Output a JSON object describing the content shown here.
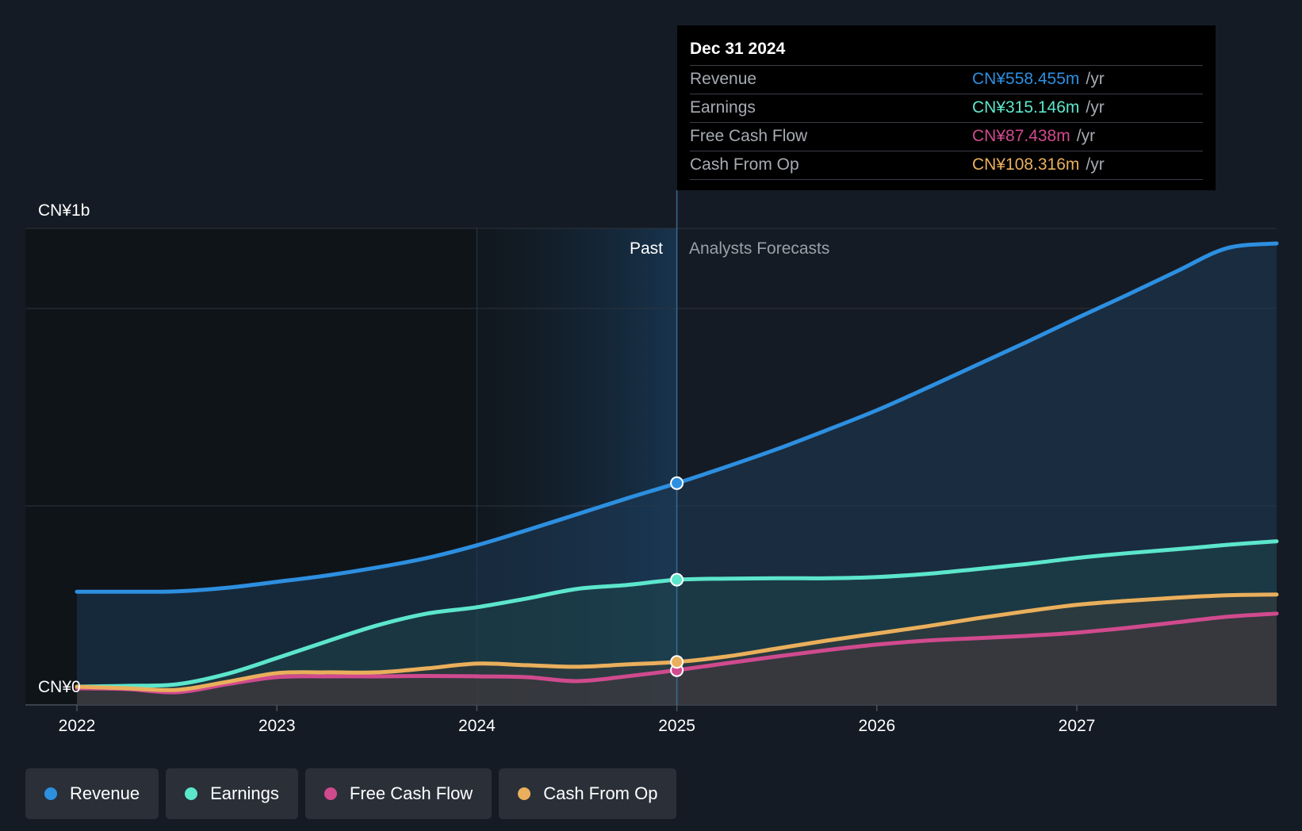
{
  "chart_data": {
    "type": "area",
    "ylabel_top": "CN¥1b",
    "ylabel_bottom": "CN¥0",
    "ylim": [
      0,
      1200
    ],
    "x_ticks": [
      "2022",
      "2023",
      "2024",
      "2025",
      "2026",
      "2027"
    ],
    "past_label": "Past",
    "forecast_label": "Analysts Forecasts",
    "series": [
      {
        "name": "Revenue",
        "color": "#2d8fe0",
        "points": [
          [
            2022.0,
            285
          ],
          [
            2022.25,
            285
          ],
          [
            2022.5,
            286
          ],
          [
            2022.75,
            295
          ],
          [
            2023.0,
            310
          ],
          [
            2023.25,
            326
          ],
          [
            2023.5,
            346
          ],
          [
            2023.75,
            370
          ],
          [
            2024.0,
            402
          ],
          [
            2024.25,
            440
          ],
          [
            2024.5,
            480
          ],
          [
            2024.75,
            520
          ],
          [
            2025.0,
            558.455
          ],
          [
            2025.25,
            600
          ],
          [
            2025.5,
            644
          ],
          [
            2025.75,
            692
          ],
          [
            2026.0,
            742
          ],
          [
            2026.25,
            798
          ],
          [
            2026.5,
            856
          ],
          [
            2026.75,
            914
          ],
          [
            2027.0,
            974
          ],
          [
            2027.25,
            1032
          ],
          [
            2027.5,
            1092
          ],
          [
            2027.75,
            1150
          ],
          [
            2028.0,
            1162
          ]
        ]
      },
      {
        "name": "Earnings",
        "color": "#5ce6cc",
        "points": [
          [
            2022.0,
            46
          ],
          [
            2022.25,
            48
          ],
          [
            2022.5,
            52
          ],
          [
            2022.75,
            78
          ],
          [
            2023.0,
            118
          ],
          [
            2023.25,
            160
          ],
          [
            2023.5,
            200
          ],
          [
            2023.75,
            230
          ],
          [
            2024.0,
            246
          ],
          [
            2024.25,
            268
          ],
          [
            2024.5,
            292
          ],
          [
            2024.75,
            302
          ],
          [
            2025.0,
            315.146
          ],
          [
            2025.25,
            318
          ],
          [
            2025.5,
            319
          ],
          [
            2025.75,
            319
          ],
          [
            2026.0,
            322
          ],
          [
            2026.25,
            330
          ],
          [
            2026.5,
            342
          ],
          [
            2026.75,
            355
          ],
          [
            2027.0,
            370
          ],
          [
            2027.25,
            382
          ],
          [
            2027.5,
            392
          ],
          [
            2027.75,
            403
          ],
          [
            2028.0,
            412
          ]
        ]
      },
      {
        "name": "Free Cash Flow",
        "color": "#d04a8e",
        "points": [
          [
            2022.0,
            42
          ],
          [
            2022.25,
            40
          ],
          [
            2022.5,
            32
          ],
          [
            2022.75,
            52
          ],
          [
            2023.0,
            70
          ],
          [
            2023.25,
            72
          ],
          [
            2023.5,
            72
          ],
          [
            2023.75,
            73
          ],
          [
            2024.0,
            72
          ],
          [
            2024.25,
            70
          ],
          [
            2024.5,
            60
          ],
          [
            2024.75,
            72
          ],
          [
            2025.0,
            87.438
          ],
          [
            2025.25,
            105
          ],
          [
            2025.5,
            122
          ],
          [
            2025.75,
            138
          ],
          [
            2026.0,
            152
          ],
          [
            2026.25,
            162
          ],
          [
            2026.5,
            168
          ],
          [
            2026.75,
            174
          ],
          [
            2027.0,
            182
          ],
          [
            2027.25,
            194
          ],
          [
            2027.5,
            208
          ],
          [
            2027.75,
            222
          ],
          [
            2028.0,
            230
          ]
        ]
      },
      {
        "name": "Cash From Op",
        "color": "#eaaf5c",
        "points": [
          [
            2022.0,
            46
          ],
          [
            2022.25,
            42
          ],
          [
            2022.5,
            38
          ],
          [
            2022.75,
            58
          ],
          [
            2023.0,
            80
          ],
          [
            2023.25,
            82
          ],
          [
            2023.5,
            82
          ],
          [
            2023.75,
            92
          ],
          [
            2024.0,
            104
          ],
          [
            2024.25,
            100
          ],
          [
            2024.5,
            96
          ],
          [
            2024.75,
            102
          ],
          [
            2025.0,
            108.316
          ],
          [
            2025.25,
            122
          ],
          [
            2025.5,
            142
          ],
          [
            2025.75,
            162
          ],
          [
            2026.0,
            180
          ],
          [
            2026.25,
            198
          ],
          [
            2026.5,
            218
          ],
          [
            2026.75,
            236
          ],
          [
            2027.0,
            252
          ],
          [
            2027.25,
            262
          ],
          [
            2027.5,
            270
          ],
          [
            2027.75,
            276
          ],
          [
            2028.0,
            278
          ]
        ]
      }
    ]
  },
  "tooltip": {
    "date": "Dec 31 2024",
    "unit": "/yr",
    "rows": [
      {
        "label": "Revenue",
        "value": "CN¥558.455m",
        "color": "#2d8fe0"
      },
      {
        "label": "Earnings",
        "value": "CN¥315.146m",
        "color": "#5ce6cc"
      },
      {
        "label": "Free Cash Flow",
        "value": "CN¥87.438m",
        "color": "#d04a8e"
      },
      {
        "label": "Cash From Op",
        "value": "CN¥108.316m",
        "color": "#eaaf5c"
      }
    ]
  },
  "legend": [
    {
      "label": "Revenue",
      "color": "#2d8fe0"
    },
    {
      "label": "Earnings",
      "color": "#5ce6cc"
    },
    {
      "label": "Free Cash Flow",
      "color": "#d04a8e"
    },
    {
      "label": "Cash From Op",
      "color": "#eaaf5c"
    }
  ]
}
